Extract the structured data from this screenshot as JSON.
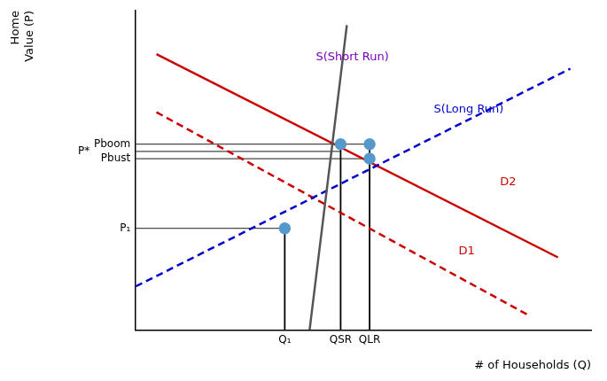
{
  "chart_data": {
    "type": "line",
    "xlabel": "# of Households (Q)",
    "ylabel": "Home\nValue (P)",
    "xlim": [
      0,
      11
    ],
    "ylim": [
      0,
      11
    ],
    "grid": false,
    "tick_labels": false,
    "series": [
      {
        "name": "S(Short Run)",
        "x": [
          4.2,
          4.75,
          5.1
        ],
        "y": [
          0.0,
          6.4,
          10.5
        ],
        "color": "#555555",
        "line_style": "solid",
        "label_x": 4.35,
        "label_y": 9.3,
        "label_color": "#7700bb"
      },
      {
        "name": "S(Long Run)",
        "x": [
          0.0,
          10.5
        ],
        "y": [
          1.5,
          9.0
        ],
        "color": "#0000cc",
        "line_style": "dashed",
        "label_x": 7.2,
        "label_y": 7.5,
        "label_color": "#0000cc"
      },
      {
        "name": "D1",
        "x": [
          0.5,
          9.5
        ],
        "y": [
          7.5,
          0.5
        ],
        "color": "#cc0000",
        "line_style": "dashed",
        "label_x": 7.8,
        "label_y": 2.6,
        "label_color": "#cc0000"
      },
      {
        "name": "D2",
        "x": [
          0.5,
          10.2
        ],
        "y": [
          9.5,
          2.5
        ],
        "color": "#cc0000",
        "line_style": "solid",
        "label_x": 8.8,
        "label_y": 5.0,
        "label_color": "#cc0000"
      },
      {
        "type": "scatter",
        "x": [
          3.6,
          4.95,
          5.65,
          5.65
        ],
        "y": [
          3.5,
          6.4,
          6.4,
          5.9
        ],
        "color": "#5599cc",
        "marker": "circle"
      }
    ],
    "hlines": [
      {
        "y": 6.4,
        "xmax": 5.65,
        "label": "Pboom",
        "color": "#000000"
      },
      {
        "y": 6.15,
        "xmax": 4.95,
        "label": "P*",
        "color": "#000000"
      },
      {
        "y": 5.9,
        "xmax": 5.65,
        "label": "Pbust",
        "color": "#000000"
      },
      {
        "y": 3.5,
        "xmax": 3.6,
        "label": "P₁",
        "color": "#000000"
      }
    ],
    "vlines": [
      {
        "x": 3.6,
        "ymax": 3.5,
        "label": "Q₁",
        "color": "#000000"
      },
      {
        "x": 4.95,
        "ymax": 6.4,
        "label": "QSR",
        "color": "#000000"
      },
      {
        "x": 5.65,
        "ymax": 6.4,
        "label": "QLR",
        "color": "#000000"
      }
    ]
  }
}
